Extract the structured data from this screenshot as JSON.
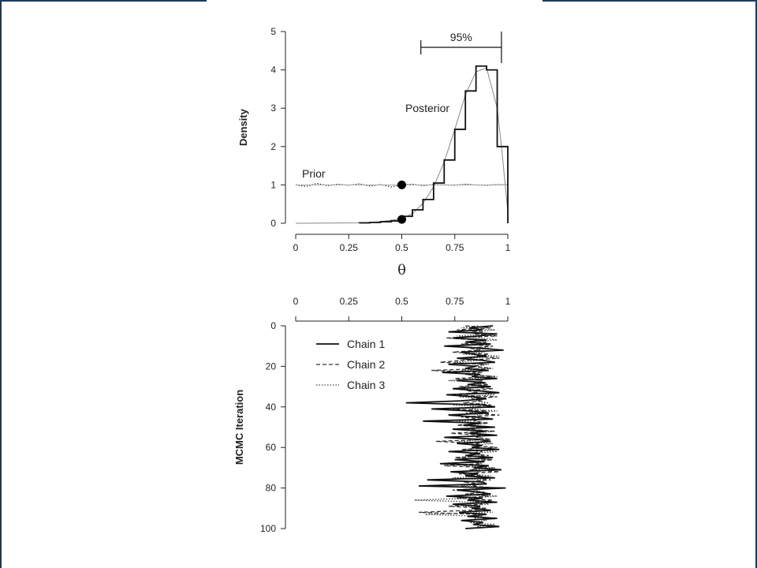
{
  "chart_data": [
    {
      "type": "line",
      "xlabel": "θ",
      "ylabel": "Density",
      "xlim": [
        0,
        1
      ],
      "ylim": [
        0,
        5
      ],
      "x_ticks": [
        "0",
        "0.25",
        "0.5",
        "0.75",
        "1"
      ],
      "y_ticks": [
        "0",
        "1",
        "2",
        "3",
        "4",
        "5"
      ],
      "grid": false,
      "annotations": {
        "prior_label": "Prior",
        "posterior_label": "Posterior",
        "interval_label": "95%",
        "interval": [
          0.59,
          0.97
        ]
      },
      "marked_points": [
        {
          "x": 0.5,
          "y": 1.0
        },
        {
          "x": 0.5,
          "y": 0.1
        }
      ],
      "histogram": {
        "bins": [
          0.3,
          0.35,
          0.4,
          0.45,
          0.5,
          0.55,
          0.6,
          0.65,
          0.7,
          0.75,
          0.8,
          0.85,
          0.9,
          0.95,
          1.0
        ],
        "heights": [
          0.01,
          0.02,
          0.04,
          0.06,
          0.18,
          0.35,
          0.62,
          1.05,
          1.65,
          2.45,
          3.45,
          4.1,
          4.0,
          2.0
        ]
      },
      "series": [
        {
          "name": "Prior",
          "x": [
            0.0,
            0.05,
            0.1,
            0.15,
            0.2,
            0.25,
            0.3,
            0.35,
            0.4,
            0.45,
            0.5,
            0.55,
            0.6,
            0.65,
            0.7,
            0.75,
            0.8,
            0.85,
            0.9,
            0.95,
            1.0
          ],
          "y": [
            1.0,
            0.96,
            1.04,
            0.98,
            1.02,
            0.99,
            1.03,
            0.97,
            1.01,
            0.95,
            1.0,
            1.02,
            0.98,
            1.01,
            1.0,
            0.99,
            1.02,
            1.0,
            0.99,
            1.01,
            1.0
          ]
        },
        {
          "name": "Posterior",
          "x": [
            0.0,
            0.3,
            0.4,
            0.5,
            0.55,
            0.6,
            0.65,
            0.7,
            0.75,
            0.8,
            0.85,
            0.9,
            0.95,
            0.97,
            1.0
          ],
          "y": [
            0.0,
            0.01,
            0.04,
            0.12,
            0.25,
            0.52,
            0.95,
            1.6,
            2.45,
            3.35,
            3.95,
            4.05,
            3.0,
            2.0,
            0.3
          ]
        }
      ]
    },
    {
      "type": "line",
      "ylabel": "MCMC Iteration",
      "xlim": [
        0,
        1
      ],
      "ylim": [
        0,
        100
      ],
      "x_ticks": [
        "0",
        "0.25",
        "0.5",
        "0.75",
        "1"
      ],
      "y_ticks": [
        "0",
        "20",
        "40",
        "60",
        "80",
        "100"
      ],
      "legend_position": "top-left",
      "series": [
        {
          "name": "Chain 1",
          "values": [
            0.93,
            0.82,
            0.88,
            0.72,
            0.95,
            0.86,
            0.74,
            0.9,
            0.8,
            0.92,
            0.7,
            0.86,
            0.98,
            0.78,
            0.84,
            0.9,
            0.76,
            0.88,
            0.94,
            0.72,
            0.85,
            0.8,
            0.91,
            0.69,
            0.87,
            0.83,
            0.95,
            0.76,
            0.89,
            0.81,
            0.92,
            0.74,
            0.86,
            0.96,
            0.71,
            0.84,
            0.9,
            0.78,
            0.52,
            0.88,
            0.94,
            0.64,
            0.82,
            0.91,
            0.72,
            0.85,
            0.93,
            0.6,
            0.87,
            0.79,
            0.94,
            0.74,
            0.89,
            0.82,
            0.95,
            0.7,
            0.86,
            0.92,
            0.76,
            0.88,
            0.83,
            0.96,
            0.72,
            0.87,
            0.8,
            0.93,
            0.75,
            0.89,
            0.68,
            0.91,
            0.84,
            0.97,
            0.73,
            0.86,
            0.8,
            0.94,
            0.62,
            0.88,
            0.9,
            0.58,
            0.99,
            0.76,
            0.86,
            0.92,
            0.71,
            0.88,
            0.81,
            0.95,
            0.74,
            0.87,
            0.83,
            0.92,
            0.77,
            0.9,
            0.81,
            0.95,
            0.78,
            0.88,
            0.84,
            0.96,
            0.8
          ]
        },
        {
          "name": "Chain 2",
          "values": [
            0.8,
            0.92,
            0.76,
            0.88,
            0.84,
            0.95,
            0.71,
            0.86,
            0.9,
            0.78,
            0.93,
            0.82,
            0.87,
            0.74,
            0.91,
            0.85,
            0.96,
            0.79,
            0.68,
            0.89,
            0.83,
            0.92,
            0.64,
            0.87,
            0.8,
            0.94,
            0.75,
            0.88,
            0.84,
            0.91,
            0.77,
            0.93,
            0.81,
            0.86,
            0.72,
            0.95,
            0.83,
            0.88,
            0.79,
            0.92,
            0.85,
            0.74,
            0.9,
            0.82,
            0.96,
            0.78,
            0.87,
            0.84,
            0.91,
            0.76,
            0.88,
            0.81,
            0.94,
            0.73,
            0.89,
            0.85,
            0.92,
            0.66,
            0.87,
            0.83,
            0.95,
            0.78,
            0.88,
            0.82,
            0.91,
            0.75,
            0.93,
            0.84,
            0.87,
            0.7,
            0.9,
            0.82,
            0.96,
            0.77,
            0.88,
            0.85,
            0.92,
            0.79,
            0.87,
            0.83,
            0.94,
            0.74,
            0.89,
            0.8,
            0.91,
            0.76,
            0.93,
            0.84,
            0.88,
            0.72,
            0.9,
            0.82,
            0.58,
            0.87,
            0.85,
            0.92,
            0.78,
            0.89,
            0.83,
            0.94,
            0.81
          ]
        },
        {
          "name": "Chain 3",
          "values": [
            0.86,
            0.78,
            0.94,
            0.83,
            0.9,
            0.76,
            0.88,
            0.95,
            0.81,
            0.87,
            0.74,
            0.92,
            0.84,
            0.89,
            0.79,
            0.96,
            0.82,
            0.87,
            0.75,
            0.91,
            0.85,
            0.93,
            0.78,
            0.88,
            0.8,
            0.95,
            0.84,
            0.72,
            0.9,
            0.86,
            0.92,
            0.79,
            0.87,
            0.83,
            0.94,
            0.77,
            0.89,
            0.85,
            0.91,
            0.74,
            0.88,
            0.82,
            0.95,
            0.8,
            0.87,
            0.84,
            0.92,
            0.76,
            0.9,
            0.83,
            0.86,
            0.79,
            0.94,
            0.81,
            0.88,
            0.85,
            0.91,
            0.77,
            0.93,
            0.84,
            0.87,
            0.8,
            0.95,
            0.82,
            0.89,
            0.76,
            0.91,
            0.85,
            0.88,
            0.79,
            0.94,
            0.83,
            0.87,
            0.81,
            0.92,
            0.74,
            0.89,
            0.86,
            0.9,
            0.78,
            0.93,
            0.84,
            0.88,
            0.8,
            0.95,
            0.83,
            0.56,
            0.87,
            0.91,
            0.79,
            0.89,
            0.85,
            0.93,
            0.61,
            0.88,
            0.84,
            0.9,
            0.82,
            0.94,
            0.86,
            0.88
          ]
        }
      ]
    }
  ]
}
